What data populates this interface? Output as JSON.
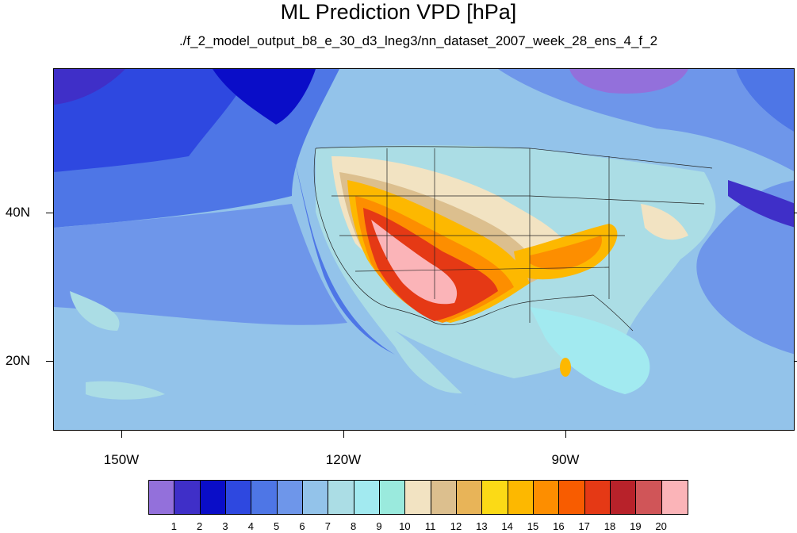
{
  "title": "ML Prediction VPD [hPa]",
  "subtitle": "./f_2_model_output_b8_e_30_d3_lneg3/nn_dataset_2007_week_28_ens_4_f_2",
  "lat_labels": [
    "40N",
    "20N"
  ],
  "lon_labels": [
    "150W",
    "120W",
    "90W"
  ],
  "colorbar": {
    "labels": [
      "1",
      "2",
      "3",
      "4",
      "5",
      "6",
      "7",
      "8",
      "9",
      "10",
      "11",
      "12",
      "13",
      "14",
      "15",
      "16",
      "17",
      "18",
      "19",
      "20"
    ],
    "colors": [
      "#9370db",
      "#3f2fc8",
      "#0a0dc8",
      "#2e48e0",
      "#4e76e6",
      "#6e96ea",
      "#93c3ea",
      "#abdde5",
      "#a2eaf0",
      "#9aeadd",
      "#f2e3c2",
      "#dcbf8e",
      "#e8b458",
      "#fbda16",
      "#fdb800",
      "#fd8e00",
      "#f85c00",
      "#e53915",
      "#b8222a",
      "#d05558",
      "#fbb4b8"
    ]
  },
  "map": {
    "ocean_base_color": "#93c3ea",
    "land_base_color": "#abdde5"
  }
}
